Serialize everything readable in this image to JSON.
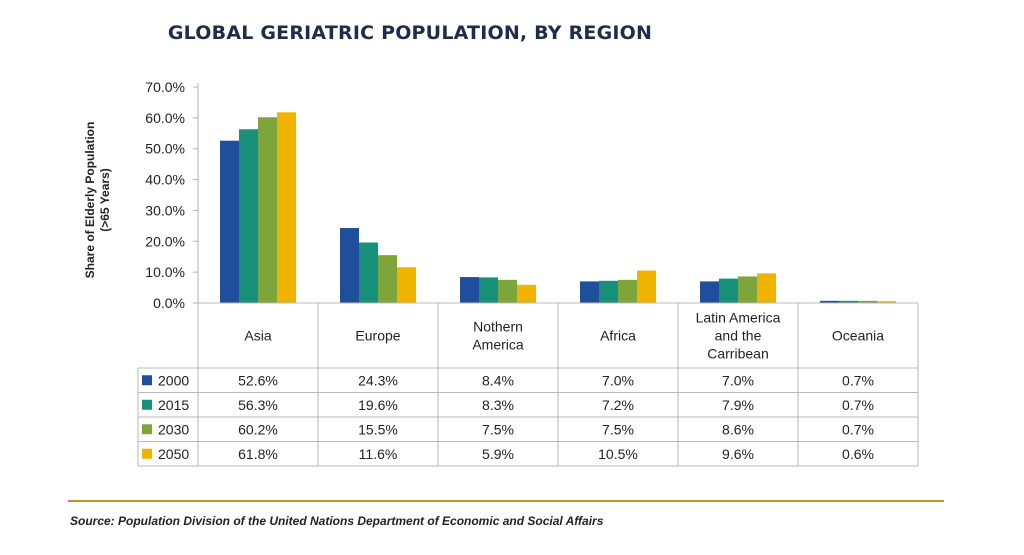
{
  "chart_data": {
    "type": "bar",
    "title": "GLOBAL GERIATRIC POPULATION, BY REGION",
    "ylabel_line1": "Share of Elderly Population",
    "ylabel_line2": "(>65 Years)",
    "xlabel": "",
    "ylim": [
      0,
      70
    ],
    "yticks": [
      "0.0%",
      "10.0%",
      "20.0%",
      "30.0%",
      "40.0%",
      "50.0%",
      "60.0%",
      "70.0%"
    ],
    "grid": false,
    "legend": "data-table",
    "categories": [
      [
        "Asia"
      ],
      [
        "Europe"
      ],
      [
        "Nothern",
        "America"
      ],
      [
        "Africa"
      ],
      [
        "Latin America",
        "and the",
        "Carribean"
      ],
      [
        "Oceania"
      ]
    ],
    "series": [
      {
        "name": "2000",
        "color": "#1f4e9c",
        "values": [
          52.6,
          24.3,
          8.4,
          7.0,
          7.0,
          0.7
        ],
        "labels": [
          "52.6%",
          "24.3%",
          "8.4%",
          "7.0%",
          "7.0%",
          "0.7%"
        ]
      },
      {
        "name": "2015",
        "color": "#17917a",
        "values": [
          56.3,
          19.6,
          8.3,
          7.2,
          7.9,
          0.7
        ],
        "labels": [
          "56.3%",
          "19.6%",
          "8.3%",
          "7.2%",
          "7.9%",
          "0.7%"
        ]
      },
      {
        "name": "2030",
        "color": "#7da53a",
        "values": [
          60.2,
          15.5,
          7.5,
          7.5,
          8.6,
          0.7
        ],
        "labels": [
          "60.2%",
          "15.5%",
          "7.5%",
          "7.5%",
          "8.6%",
          "0.7%"
        ]
      },
      {
        "name": "2050",
        "color": "#f0b400",
        "values": [
          61.8,
          11.6,
          5.9,
          10.5,
          9.6,
          0.6
        ],
        "labels": [
          "61.8%",
          "11.6%",
          "5.9%",
          "10.5%",
          "9.6%",
          "0.6%"
        ]
      }
    ]
  },
  "source": "Source: Population Division of the United Nations Department of Economic and Social Affairs"
}
